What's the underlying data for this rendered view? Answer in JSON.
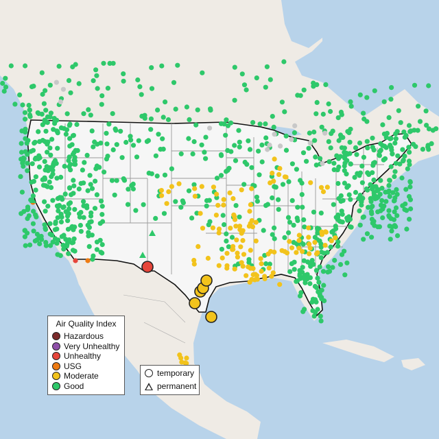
{
  "colors": {
    "water": "#b8d3ea",
    "land": "#f0ece6",
    "us_land": "#f5f5f5",
    "state_border": "#9a9a9a",
    "national_border": "#111111",
    "hazardous": "#7b2a2a",
    "very_unhealthy": "#8e4fa8",
    "unhealthy": "#e6453a",
    "usg": "#ee7b12",
    "moderate": "#f2c31c",
    "good": "#2ec86a",
    "no_data": "#c8c8c8"
  },
  "legend": {
    "title": "Air Quality Index",
    "items": [
      {
        "label": "Hazardous",
        "color": "#7b2a2a"
      },
      {
        "label": "Very Unhealthy",
        "color": "#8e4fa8"
      },
      {
        "label": "Unhealthy",
        "color": "#e6453a"
      },
      {
        "label": "USG",
        "color": "#ee7b12"
      },
      {
        "label": "Moderate",
        "color": "#f2c31c"
      },
      {
        "label": "Good",
        "color": "#2ec86a"
      }
    ]
  },
  "shape_legend": {
    "temporary": "temporary",
    "permanent": "permanent"
  },
  "large_markers": [
    {
      "lon": -106.4,
      "lat": 31.8,
      "category": "unhealthy"
    },
    {
      "lon": -95.4,
      "lat": 29.8,
      "category": "moderate"
    },
    {
      "lon": -95.2,
      "lat": 29.7,
      "category": "moderate"
    },
    {
      "lon": -94.8,
      "lat": 30.1,
      "category": "moderate"
    },
    {
      "lon": -97.6,
      "lat": 27.7,
      "category": "moderate"
    },
    {
      "lon": -94.1,
      "lat": 26.3,
      "category": "moderate"
    }
  ]
}
